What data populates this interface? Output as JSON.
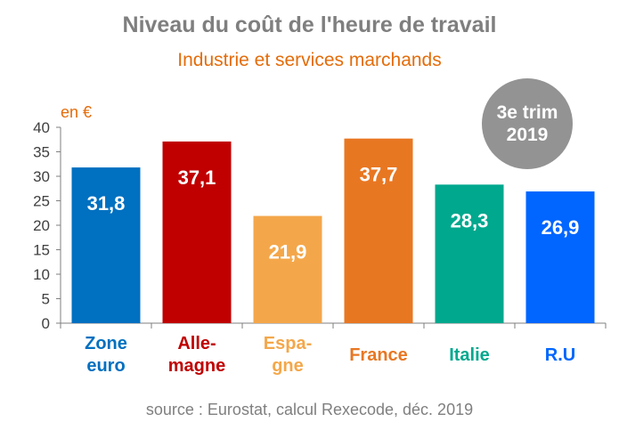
{
  "title": "Niveau du coût de l'heure de travail",
  "subtitle": "Industrie et services marchands",
  "unit_label": "en €",
  "badge": {
    "line1": "3e trim",
    "line2": "2019"
  },
  "source": "source : Eurostat, calcul Rexecode, déc. 2019",
  "chart_data": {
    "type": "bar",
    "title": "Niveau du coût de l'heure de travail",
    "subtitle": "Industrie et services marchands",
    "ylabel": "en €",
    "ylim": [
      0,
      40
    ],
    "yticks": [
      0,
      5,
      10,
      15,
      20,
      25,
      30,
      35,
      40
    ],
    "grid": false,
    "categories": [
      {
        "lines": [
          "Zone",
          "euro"
        ],
        "value": 31.8,
        "label": "31,8",
        "color": "#0070c0"
      },
      {
        "lines": [
          "Alle-",
          "magne"
        ],
        "value": 37.1,
        "label": "37,1",
        "color": "#c00000"
      },
      {
        "lines": [
          "Espa-",
          "gne"
        ],
        "value": 21.9,
        "label": "21,9",
        "color": "#f4a74a"
      },
      {
        "lines": [
          "France"
        ],
        "value": 37.7,
        "label": "37,7",
        "color": "#e87722"
      },
      {
        "lines": [
          "Italie"
        ],
        "value": 28.3,
        "label": "28,3",
        "color": "#00a88e"
      },
      {
        "lines": [
          "R.U"
        ],
        "value": 26.9,
        "label": "26,9",
        "color": "#0066ff"
      }
    ]
  }
}
